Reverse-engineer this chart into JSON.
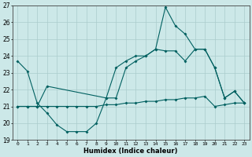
{
  "xlabel": "Humidex (Indice chaleur)",
  "bg_color": "#cce8e8",
  "line_color": "#006060",
  "grid_color": "#aacccc",
  "ylim": [
    19,
    27
  ],
  "xlim": [
    -0.5,
    23.5
  ],
  "yticks": [
    19,
    20,
    21,
    22,
    23,
    24,
    25,
    26,
    27
  ],
  "xticks": [
    0,
    1,
    2,
    3,
    4,
    5,
    6,
    7,
    8,
    9,
    10,
    11,
    12,
    13,
    14,
    15,
    16,
    17,
    18,
    19,
    20,
    21,
    22,
    23
  ],
  "line1_x": [
    0,
    1,
    2,
    3,
    4,
    5,
    6,
    7,
    8,
    9,
    10,
    11,
    12,
    13,
    14,
    15,
    16,
    17,
    18,
    19,
    20,
    21,
    22,
    23
  ],
  "line1_y": [
    23.7,
    23.1,
    21.2,
    20.6,
    19.9,
    19.5,
    19.5,
    19.5,
    20.0,
    21.5,
    21.5,
    23.3,
    23.7,
    24.0,
    24.4,
    26.9,
    25.8,
    25.3,
    24.4,
    24.4,
    23.3,
    21.5,
    21.9,
    21.2
  ],
  "line2_x": [
    0,
    1,
    2,
    3,
    9,
    10,
    11,
    12,
    13,
    14,
    15,
    16,
    17,
    18,
    19,
    20,
    21,
    22,
    23
  ],
  "line2_y": [
    21.0,
    21.0,
    21.0,
    22.2,
    21.5,
    23.3,
    23.7,
    24.0,
    24.0,
    24.4,
    24.3,
    24.3,
    23.7,
    24.4,
    24.4,
    23.3,
    21.5,
    21.9,
    21.2
  ],
  "line3_x": [
    0,
    1,
    2,
    3,
    4,
    5,
    6,
    7,
    8,
    9,
    10,
    11,
    12,
    13,
    14,
    15,
    16,
    17,
    18,
    19,
    20,
    21,
    22,
    23
  ],
  "line3_y": [
    21.0,
    21.0,
    21.0,
    21.0,
    21.0,
    21.0,
    21.0,
    21.0,
    21.0,
    21.1,
    21.1,
    21.2,
    21.2,
    21.3,
    21.3,
    21.4,
    21.4,
    21.5,
    21.5,
    21.6,
    21.0,
    21.1,
    21.2,
    21.2
  ]
}
